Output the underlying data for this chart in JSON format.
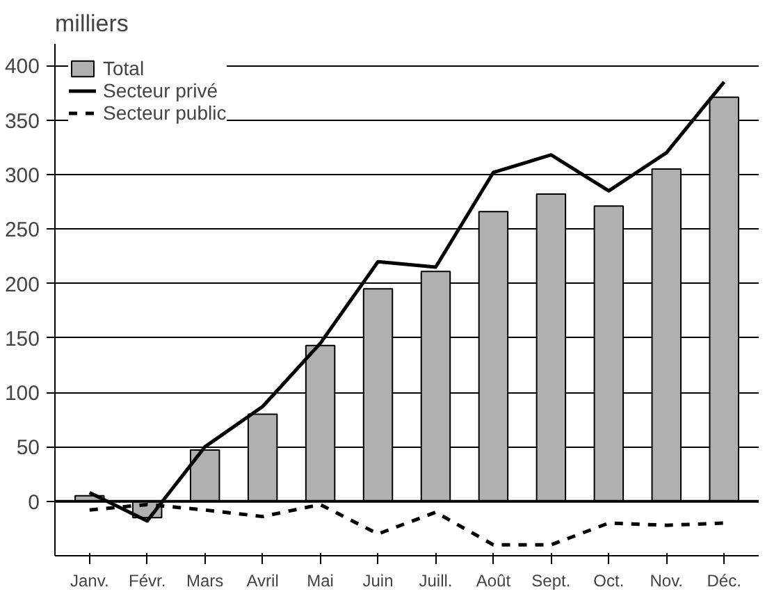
{
  "chart_data": {
    "type": "bar",
    "ylabel": "milliers",
    "categories": [
      "Janv.",
      "Févr.",
      "Mars",
      "Avril",
      "Mai",
      "Juin",
      "Juill.",
      "Août",
      "Sept.",
      "Oct.",
      "Nov.",
      "Déc."
    ],
    "series": [
      {
        "name": "Total",
        "color": "#b0b0b0",
        "values": [
          5,
          -15,
          47,
          80,
          143,
          195,
          211,
          266,
          282,
          271,
          305,
          371
        ]
      },
      {
        "name": "Secteur privé",
        "type": "line",
        "color": "#000000",
        "line_style": "solid",
        "values": [
          8,
          -18,
          50,
          87,
          145,
          220,
          215,
          302,
          318,
          285,
          320,
          385
        ]
      },
      {
        "name": "Secteur public",
        "type": "line",
        "color": "#000000",
        "line_style": "dashed",
        "values": [
          -8,
          -3,
          -8,
          -14,
          -3,
          -30,
          -10,
          -40,
          -40,
          -20,
          -22,
          -20
        ]
      }
    ],
    "ylim": [
      -50,
      420
    ],
    "yticks": [
      0,
      50,
      100,
      150,
      200,
      250,
      300,
      350,
      400
    ],
    "grid": "y",
    "legend": "top left"
  }
}
